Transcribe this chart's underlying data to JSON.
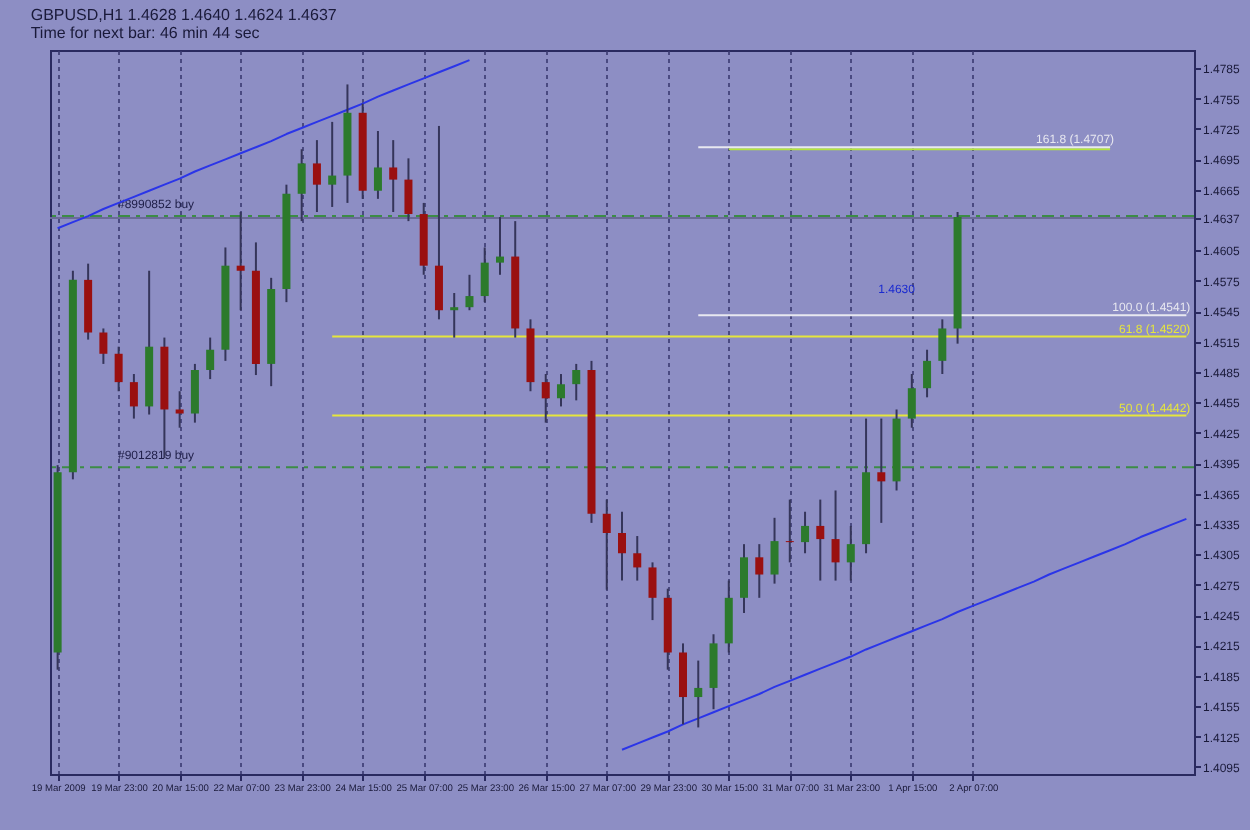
{
  "chart_data": {
    "type": "candlestick",
    "title": "GBPUSD,H1  1.4628 1.4640 1.4624 1.4637",
    "subtitle": "Time for next bar: 46 min 44 sec",
    "categories": [
      "19 Mar 2009",
      null,
      null,
      null,
      "19 Mar 23:00",
      null,
      null,
      null,
      "20 Mar 15:00",
      null,
      null,
      null,
      "22 Mar 07:00",
      null,
      null,
      null,
      "23 Mar 23:00",
      null,
      null,
      null,
      "24 Mar 15:00",
      null,
      null,
      null,
      "25 Mar 07:00",
      null,
      null,
      null,
      "25 Mar 23:00",
      null,
      null,
      null,
      "26 Mar 15:00",
      null,
      null,
      null,
      "27 Mar 07:00",
      null,
      null,
      null,
      "29 Mar 23:00",
      null,
      null,
      null,
      "30 Mar 15:00",
      null,
      null,
      null,
      "31 Mar 07:00",
      null,
      null,
      null,
      "31 Mar 23:00",
      null,
      null,
      null,
      "1 Apr 15:00",
      null,
      null,
      null,
      "2 Apr 07:00",
      null,
      null,
      null,
      null,
      null,
      null,
      null,
      null,
      null,
      null,
      null,
      null,
      null,
      null
    ],
    "ohlc": [
      [
        1.4208,
        1.4393,
        1.4191,
        1.4386
      ],
      [
        1.4386,
        1.4585,
        1.4379,
        1.4576
      ],
      [
        1.4576,
        1.4592,
        1.4517,
        1.4524
      ],
      [
        1.4524,
        1.4528,
        1.4493,
        1.4503
      ],
      [
        1.4503,
        1.451,
        1.4466,
        1.4475
      ],
      [
        1.4475,
        1.4483,
        1.4439,
        1.4451
      ],
      [
        1.4451,
        1.4585,
        1.4443,
        1.451
      ],
      [
        1.451,
        1.4519,
        1.44,
        1.4448
      ],
      [
        1.4448,
        1.4466,
        1.443,
        1.4444
      ],
      [
        1.4444,
        1.4493,
        1.4435,
        1.4487
      ],
      [
        1.4487,
        1.4519,
        1.4478,
        1.4507
      ],
      [
        1.4507,
        1.4608,
        1.4496,
        1.459
      ],
      [
        1.459,
        1.4643,
        1.4546,
        1.4585
      ],
      [
        1.4585,
        1.4613,
        1.4482,
        1.4493
      ],
      [
        1.4493,
        1.4578,
        1.4471,
        1.4567
      ],
      [
        1.4567,
        1.467,
        1.4554,
        1.4661
      ],
      [
        1.4661,
        1.4705,
        1.4634,
        1.4691
      ],
      [
        1.4691,
        1.4714,
        1.4643,
        1.467
      ],
      [
        1.467,
        1.4732,
        1.4648,
        1.4679
      ],
      [
        1.4679,
        1.4769,
        1.4652,
        1.4741
      ],
      [
        1.4741,
        1.475,
        1.4656,
        1.4664
      ],
      [
        1.4664,
        1.4723,
        1.4656,
        1.4687
      ],
      [
        1.4687,
        1.4714,
        1.4643,
        1.4675
      ],
      [
        1.4675,
        1.4696,
        1.4634,
        1.4641
      ],
      [
        1.4641,
        1.4652,
        1.4581,
        1.459
      ],
      [
        1.459,
        1.4728,
        1.4537,
        1.4546
      ],
      [
        1.4546,
        1.4563,
        1.4519,
        1.4549
      ],
      [
        1.4549,
        1.4581,
        1.4546,
        1.456
      ],
      [
        1.456,
        1.4608,
        1.4554,
        1.4593
      ],
      [
        1.4593,
        1.4638,
        1.4581,
        1.4599
      ],
      [
        1.4599,
        1.4634,
        1.4519,
        1.4528
      ],
      [
        1.4528,
        1.4537,
        1.4466,
        1.4475
      ],
      [
        1.4475,
        1.4483,
        1.4435,
        1.4459
      ],
      [
        1.4459,
        1.4483,
        1.4451,
        1.4473
      ],
      [
        1.4473,
        1.4493,
        1.4457,
        1.4487
      ],
      [
        1.4487,
        1.4496,
        1.4336,
        1.4345
      ],
      [
        1.4345,
        1.4359,
        1.427,
        1.4326
      ],
      [
        1.4326,
        1.4347,
        1.4279,
        1.4306
      ],
      [
        1.4306,
        1.4323,
        1.4279,
        1.4292
      ],
      [
        1.4292,
        1.4297,
        1.424,
        1.4262
      ],
      [
        1.4262,
        1.4271,
        1.4191,
        1.4208
      ],
      [
        1.4208,
        1.4217,
        1.4137,
        1.4164
      ],
      [
        1.4164,
        1.42,
        1.4134,
        1.4173
      ],
      [
        1.4173,
        1.4226,
        1.4152,
        1.4217
      ],
      [
        1.4217,
        1.4279,
        1.4208,
        1.4262
      ],
      [
        1.4262,
        1.4315,
        1.4247,
        1.4302
      ],
      [
        1.4302,
        1.4315,
        1.4262,
        1.4285
      ],
      [
        1.4285,
        1.4341,
        1.4276,
        1.4318
      ],
      [
        1.4318,
        1.4359,
        1.4297,
        1.4317
      ],
      [
        1.4317,
        1.4347,
        1.4306,
        1.4333
      ],
      [
        1.4333,
        1.4359,
        1.4279,
        1.432
      ],
      [
        1.432,
        1.4368,
        1.4279,
        1.4297
      ],
      [
        1.4297,
        1.4333,
        1.4279,
        1.4315
      ],
      [
        1.4315,
        1.4439,
        1.4306,
        1.4386
      ],
      [
        1.4386,
        1.4439,
        1.4336,
        1.4377
      ],
      [
        1.4377,
        1.4448,
        1.4368,
        1.4439
      ],
      [
        1.4439,
        1.4483,
        1.443,
        1.4469
      ],
      [
        1.4469,
        1.4507,
        1.446,
        1.4496
      ],
      [
        1.4496,
        1.4537,
        1.4483,
        1.4528
      ],
      [
        1.4528,
        1.4643,
        1.4513,
        1.4638
      ],
      null,
      null,
      null,
      null,
      null,
      null,
      null,
      null,
      null,
      null,
      null,
      null,
      null,
      null,
      null
    ],
    "series": [
      {
        "type": "line",
        "color": "#2b35e8",
        "values": [
          1.4627,
          1.4633,
          1.4639,
          1.4646,
          1.4652,
          1.4658,
          1.4664,
          1.467,
          1.4676,
          1.4683,
          1.4689,
          1.4695,
          1.4701,
          1.4707,
          1.4713,
          1.472,
          1.4726,
          1.4732,
          1.4738,
          1.4744,
          1.475,
          1.4757,
          1.4763,
          1.4769,
          1.4775,
          1.4781,
          1.4787,
          1.4793,
          null,
          null,
          null,
          null,
          null,
          null,
          null,
          null,
          null,
          null,
          null,
          null,
          null,
          null,
          null,
          null,
          null,
          null,
          null,
          null,
          null,
          null,
          null,
          null,
          null,
          null,
          null,
          null,
          null,
          null,
          null,
          null,
          null,
          null,
          null,
          null,
          null,
          null,
          null,
          null,
          null,
          null,
          null,
          null,
          null,
          null,
          null
        ]
      },
      {
        "type": "line",
        "color": "#2b35e8",
        "values": [
          null,
          null,
          null,
          null,
          null,
          null,
          null,
          null,
          null,
          null,
          null,
          null,
          null,
          null,
          null,
          null,
          null,
          null,
          null,
          null,
          null,
          null,
          null,
          null,
          null,
          null,
          null,
          null,
          null,
          null,
          null,
          null,
          null,
          null,
          null,
          null,
          null,
          1.4112,
          1.4118,
          1.4124,
          1.413,
          1.4137,
          1.4143,
          1.4149,
          1.4155,
          1.4161,
          1.4167,
          1.4174,
          1.418,
          1.4186,
          1.4192,
          1.4198,
          1.4204,
          1.4211,
          1.4217,
          1.4223,
          1.4229,
          1.4235,
          1.4241,
          1.4248,
          1.4254,
          1.426,
          1.4266,
          1.4272,
          1.4278,
          1.4285,
          1.4291,
          1.4297,
          1.4303,
          1.4309,
          1.4315,
          1.4322,
          1.4328,
          1.4334,
          1.434
        ]
      },
      {
        "type": "line",
        "color": "#b4e63c",
        "values": [
          null,
          null,
          null,
          null,
          null,
          null,
          null,
          null,
          null,
          null,
          null,
          null,
          null,
          null,
          null,
          null,
          null,
          null,
          null,
          null,
          null,
          null,
          null,
          null,
          null,
          null,
          null,
          null,
          null,
          null,
          null,
          null,
          null,
          null,
          null,
          null,
          null,
          null,
          null,
          null,
          null,
          null,
          null,
          null,
          1.4705,
          1.4705,
          1.4705,
          1.4705,
          1.4705,
          1.4705,
          1.4705,
          1.4705,
          1.4705,
          1.4705,
          1.4705,
          1.4705,
          1.4705,
          1.4705,
          1.4705,
          1.4705,
          1.4705,
          1.4705,
          1.4705,
          1.4705,
          1.4705,
          1.4705,
          1.4705,
          1.4705,
          1.4705,
          1.4705,
          null,
          null,
          null,
          null,
          null
        ]
      },
      {
        "type": "line",
        "name": "161.8 (1.4707)",
        "color": "#e8e8f0",
        "values": [
          null,
          null,
          null,
          null,
          null,
          null,
          null,
          null,
          null,
          null,
          null,
          null,
          null,
          null,
          null,
          null,
          null,
          null,
          null,
          null,
          null,
          null,
          null,
          null,
          null,
          null,
          null,
          null,
          null,
          null,
          null,
          null,
          null,
          null,
          null,
          null,
          null,
          null,
          null,
          null,
          null,
          null,
          1.4707,
          1.4707,
          1.4707,
          1.4707,
          1.4707,
          1.4707,
          1.4707,
          1.4707,
          1.4707,
          1.4707,
          1.4707,
          1.4707,
          1.4707,
          1.4707,
          1.4707,
          1.4707,
          1.4707,
          1.4707,
          1.4707,
          1.4707,
          1.4707,
          1.4707,
          1.4707,
          1.4707,
          1.4707,
          1.4707,
          1.4707,
          1.4707,
          null,
          null,
          null,
          null,
          null
        ]
      },
      {
        "type": "line",
        "name": "100.0 (1.4541)",
        "color": "#e8e8f0",
        "values": [
          null,
          null,
          null,
          null,
          null,
          null,
          null,
          null,
          null,
          null,
          null,
          null,
          null,
          null,
          null,
          null,
          null,
          null,
          null,
          null,
          null,
          null,
          null,
          null,
          null,
          null,
          null,
          null,
          null,
          null,
          null,
          null,
          null,
          null,
          null,
          null,
          null,
          null,
          null,
          null,
          null,
          null,
          1.4541,
          1.4541,
          1.4541,
          1.4541,
          1.4541,
          1.4541,
          1.4541,
          1.4541,
          1.4541,
          1.4541,
          1.4541,
          1.4541,
          1.4541,
          1.4541,
          1.4541,
          1.4541,
          1.4541,
          1.4541,
          1.4541,
          1.4541,
          1.4541,
          1.4541,
          1.4541,
          1.4541,
          1.4541,
          1.4541,
          1.4541,
          1.4541,
          1.4541,
          1.4541,
          1.4541,
          1.4541,
          1.4541
        ]
      },
      {
        "type": "line",
        "name": "61.8 (1.4520)",
        "color": "#e6e63c",
        "values": [
          null,
          null,
          null,
          null,
          null,
          null,
          null,
          null,
          null,
          null,
          null,
          null,
          null,
          null,
          null,
          null,
          null,
          null,
          1.452,
          1.452,
          1.452,
          1.452,
          1.452,
          1.452,
          1.452,
          1.452,
          1.452,
          1.452,
          1.452,
          1.452,
          1.452,
          1.452,
          1.452,
          1.452,
          1.452,
          1.452,
          1.452,
          1.452,
          1.452,
          1.452,
          1.452,
          1.452,
          1.452,
          1.452,
          1.452,
          1.452,
          1.452,
          1.452,
          1.452,
          1.452,
          1.452,
          1.452,
          1.452,
          1.452,
          1.452,
          1.452,
          1.452,
          1.452,
          1.452,
          1.452,
          1.452,
          1.452,
          1.452,
          1.452,
          1.452,
          1.452,
          1.452,
          1.452,
          1.452,
          1.452,
          1.452,
          1.452,
          1.452,
          1.452,
          1.452
        ]
      },
      {
        "type": "line",
        "name": "50.0 (1.4442)",
        "color": "#e6e63c",
        "values": [
          null,
          null,
          null,
          null,
          null,
          null,
          null,
          null,
          null,
          null,
          null,
          null,
          null,
          null,
          null,
          null,
          null,
          null,
          1.4442,
          1.4442,
          1.4442,
          1.4442,
          1.4442,
          1.4442,
          1.4442,
          1.4442,
          1.4442,
          1.4442,
          1.4442,
          1.4442,
          1.4442,
          1.4442,
          1.4442,
          1.4442,
          1.4442,
          1.4442,
          1.4442,
          1.4442,
          1.4442,
          1.4442,
          1.4442,
          1.4442,
          1.4442,
          1.4442,
          1.4442,
          1.4442,
          1.4442,
          1.4442,
          1.4442,
          1.4442,
          1.4442,
          1.4442,
          1.4442,
          1.4442,
          1.4442,
          1.4442,
          1.4442,
          1.4442,
          1.4442,
          1.4442,
          1.4442,
          1.4442,
          1.4442,
          1.4442,
          1.4442,
          1.4442,
          1.4442,
          1.4442,
          1.4442,
          1.4442,
          1.4442,
          1.4442,
          1.4442,
          1.4442,
          1.4442
        ]
      }
    ],
    "ref_lines": [
      {
        "axis": "y",
        "value": 1.4639,
        "label": "#8990852 buy",
        "color": "#3c8c46",
        "line_style": "dashed"
      },
      {
        "axis": "y",
        "value": 1.4391,
        "label": "#9012819 buy",
        "color": "#3c8c46",
        "line_style": "dashed"
      },
      {
        "axis": "y",
        "value": 1.4637,
        "color": "#6a6a98",
        "line_style": "solid"
      }
    ],
    "annotations": [
      "1.4630"
    ],
    "ylim": [
      1.4088,
      1.4803
    ],
    "yticks": [
      1.4785,
      1.4755,
      1.4725,
      1.4695,
      1.4665,
      1.4637,
      1.4605,
      1.4575,
      1.4545,
      1.4515,
      1.4485,
      1.4455,
      1.4425,
      1.4395,
      1.4365,
      1.4335,
      1.4305,
      1.4275,
      1.4245,
      1.4215,
      1.4185,
      1.4155,
      1.4125,
      1.4095
    ],
    "grid": "x"
  }
}
